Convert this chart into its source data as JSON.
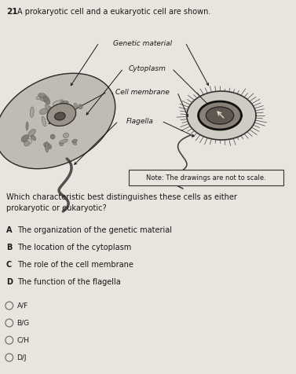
{
  "bg_color": "#e8e4de",
  "question_number": "21",
  "question_text": "A prokaryotic cell and a eukaryotic cell are shown.",
  "note_text": "Note: The drawings are not to scale.",
  "body_question": "Which characteristic best distinguishes these cells as either\nprokaryotic or eukaryotic?",
  "labels": [
    "Genetic material",
    "Cytoplasm",
    "Cell membrane",
    "Flagella"
  ],
  "choices": [
    [
      "A",
      "The organization of the genetic material"
    ],
    [
      "B",
      "The location of the cytoplasm"
    ],
    [
      "C",
      "The role of the cell membrane"
    ],
    [
      "D",
      "The function of the flagella"
    ]
  ],
  "radio_options": [
    "A/F",
    "B/G",
    "C/H",
    "D/J"
  ],
  "font_color": "#1a1a1a",
  "cell_fill": "#b8b4aa",
  "cell_edge": "#333333",
  "nucleus_fill": "#888070",
  "inner_fill": "#504840",
  "right_cell_fill": "#c8c4bc",
  "right_nucleoid_fill": "#706860",
  "right_nucleoid_edge": "#222222"
}
